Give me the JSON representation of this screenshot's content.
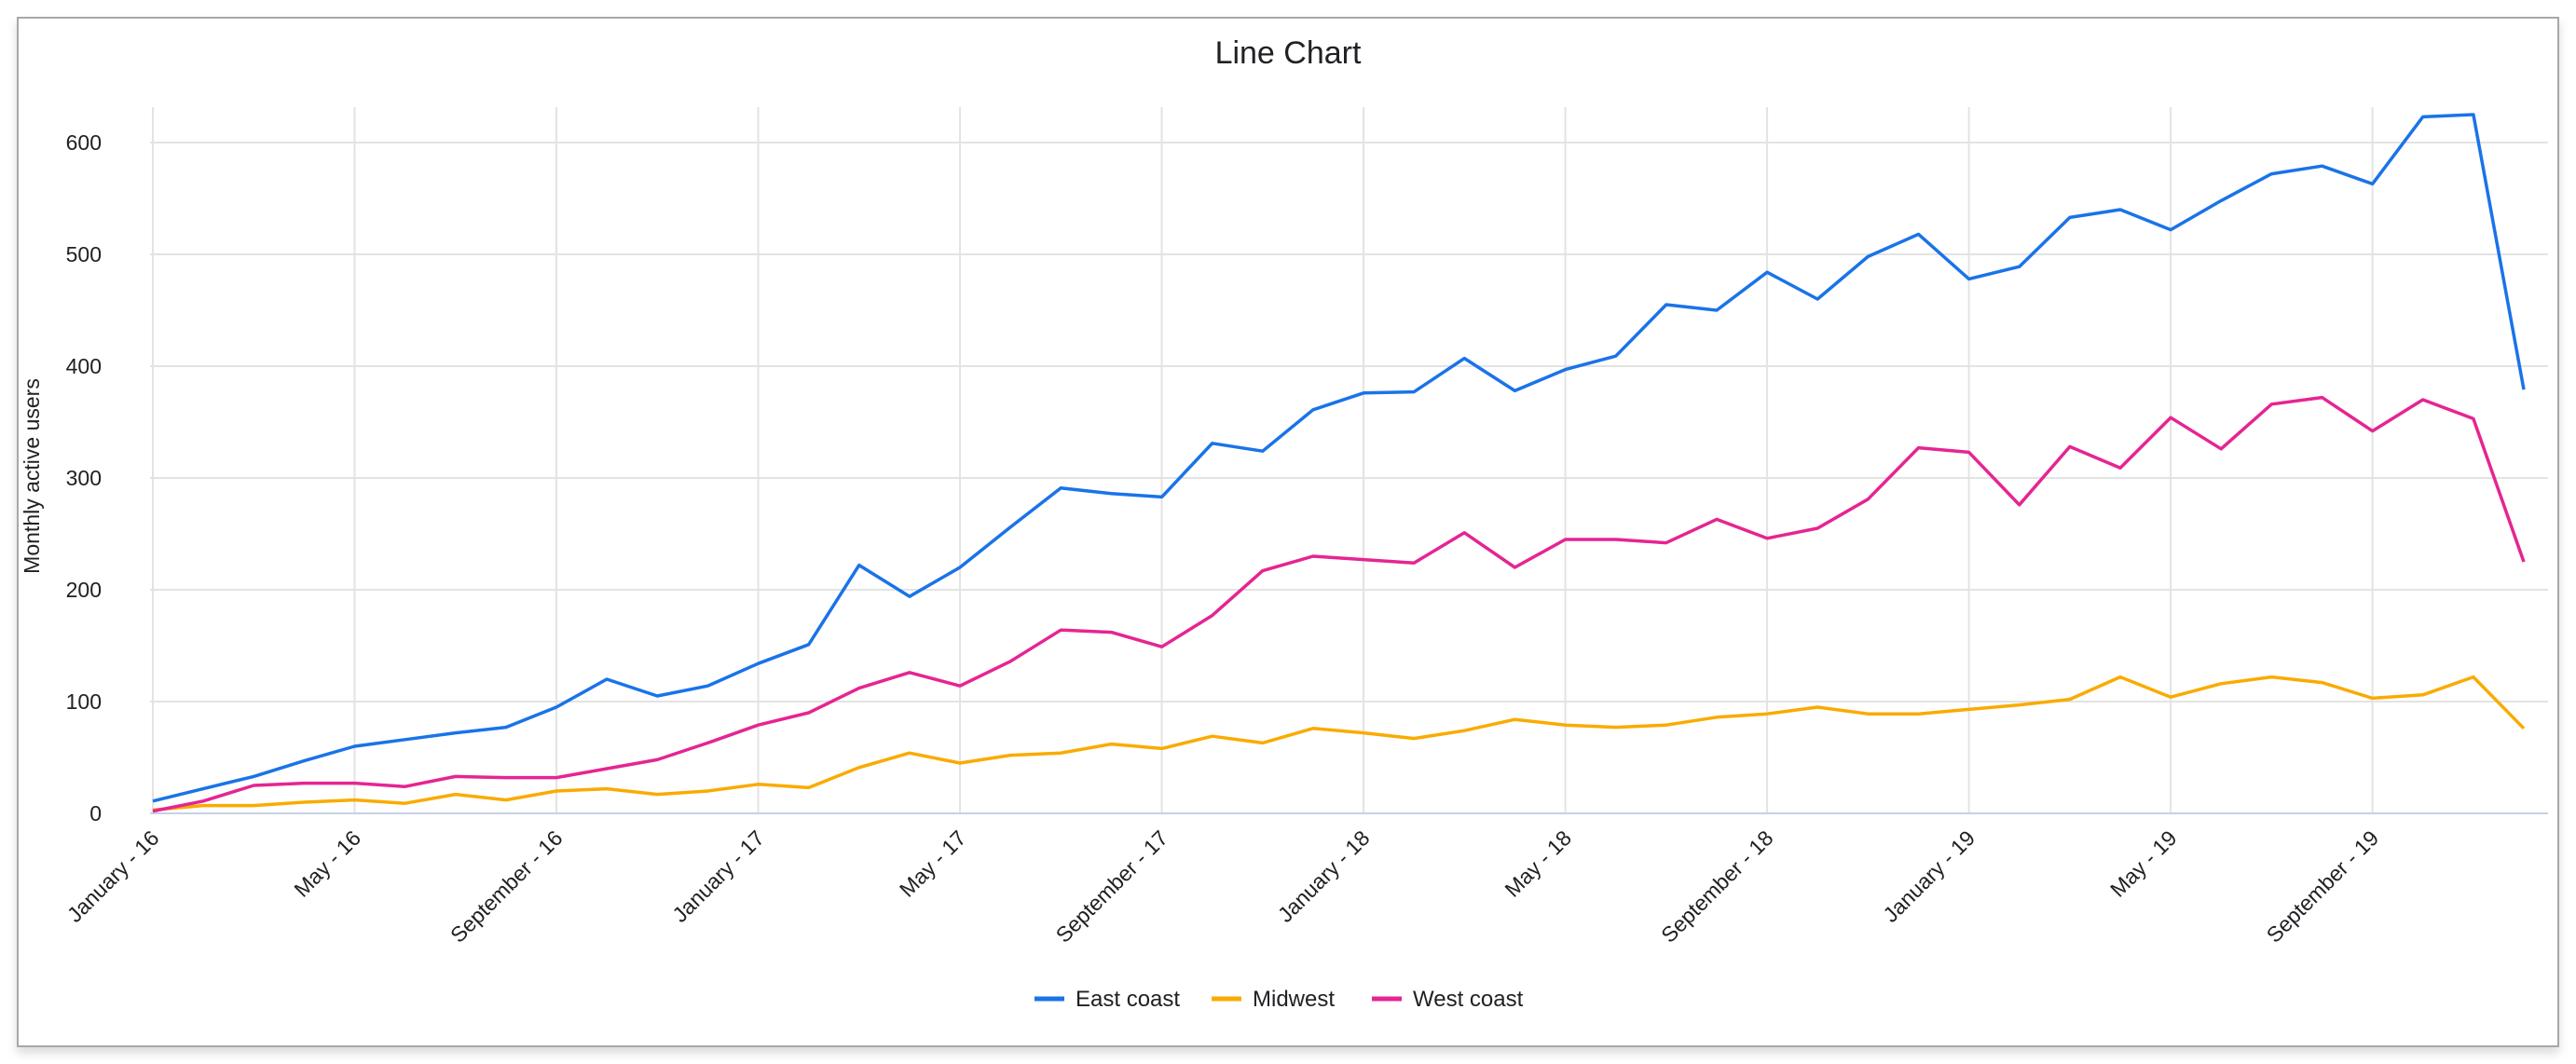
{
  "chart_data": {
    "type": "line",
    "title": "Line Chart",
    "xlabel": "",
    "ylabel": "Monthly active users",
    "ylim": [
      0,
      630
    ],
    "yticks": [
      0,
      100,
      200,
      300,
      400,
      500,
      600
    ],
    "grid": true,
    "legend_position": "bottom",
    "x": [
      "2016-01",
      "2016-02",
      "2016-03",
      "2016-04",
      "2016-05",
      "2016-06",
      "2016-07",
      "2016-08",
      "2016-09",
      "2016-10",
      "2016-11",
      "2016-12",
      "2017-01",
      "2017-02",
      "2017-03",
      "2017-04",
      "2017-05",
      "2017-06",
      "2017-07",
      "2017-08",
      "2017-09",
      "2017-10",
      "2017-11",
      "2017-12",
      "2018-01",
      "2018-02",
      "2018-03",
      "2018-04",
      "2018-05",
      "2018-06",
      "2018-07",
      "2018-08",
      "2018-09",
      "2018-10",
      "2018-11",
      "2018-12",
      "2019-01",
      "2019-02",
      "2019-03",
      "2019-04",
      "2019-05",
      "2019-06",
      "2019-07",
      "2019-08",
      "2019-09",
      "2019-10",
      "2019-11",
      "2019-12"
    ],
    "xtick_labels": [
      "January - 16",
      "May - 16",
      "September - 16",
      "January - 17",
      "May - 17",
      "September - 17",
      "January - 18",
      "May - 18",
      "September - 18",
      "January - 19",
      "May - 19",
      "September - 19"
    ],
    "series": [
      {
        "name": "East coast",
        "color": "#1a73e8",
        "values": [
          11,
          22,
          33,
          47,
          60,
          66,
          72,
          77,
          95,
          120,
          105,
          114,
          134,
          151,
          222,
          194,
          220,
          256,
          291,
          286,
          283,
          331,
          324,
          361,
          376,
          377,
          407,
          378,
          397,
          409,
          455,
          450,
          484,
          460,
          498,
          518,
          478,
          489,
          533,
          540,
          522,
          548,
          572,
          579,
          563,
          623,
          625,
          379
        ]
      },
      {
        "name": "Midwest",
        "color": "#f9ab00",
        "values": [
          3,
          7,
          7,
          10,
          12,
          9,
          17,
          12,
          20,
          22,
          17,
          20,
          26,
          23,
          41,
          54,
          45,
          52,
          54,
          62,
          58,
          69,
          63,
          76,
          72,
          67,
          74,
          84,
          79,
          77,
          79,
          86,
          89,
          95,
          89,
          89,
          93,
          97,
          102,
          122,
          104,
          116,
          122,
          117,
          103,
          106,
          122,
          76
        ]
      },
      {
        "name": "West coast",
        "color": "#e52592",
        "values": [
          2,
          11,
          25,
          27,
          27,
          24,
          33,
          32,
          32,
          40,
          48,
          63,
          79,
          90,
          112,
          126,
          114,
          136,
          164,
          162,
          149,
          177,
          217,
          230,
          227,
          224,
          251,
          220,
          245,
          245,
          242,
          263,
          246,
          255,
          281,
          327,
          323,
          276,
          328,
          309,
          354,
          326,
          366,
          372,
          342,
          370,
          353,
          225
        ]
      }
    ]
  }
}
